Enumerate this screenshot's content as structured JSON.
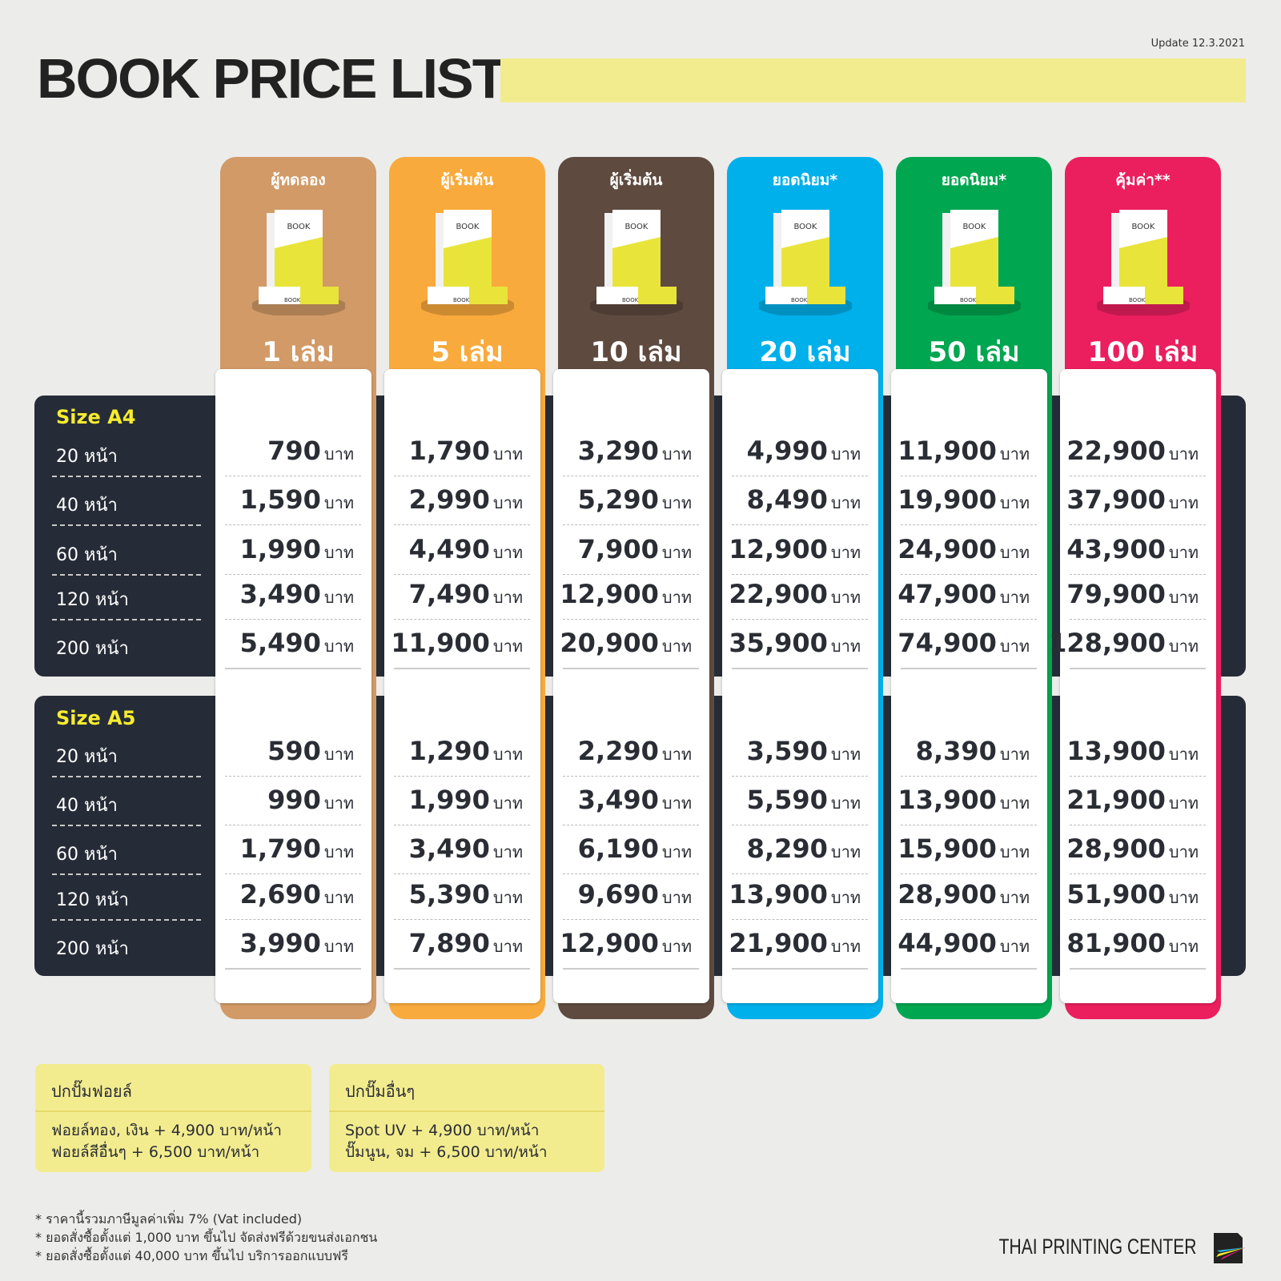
{
  "header": {
    "title": "BOOK PRICE LIST",
    "update": "Update 12.3.2021"
  },
  "colors": {
    "tiers": [
      "#d19a67",
      "#f9aa3c",
      "#5e4a3f",
      "#00b0ea",
      "#00a650",
      "#eb1f5e"
    ],
    "panel": "#262c37",
    "accent_yellow": "#f7ec2e",
    "note_bg": "#f3ec8f"
  },
  "unit": "บาท",
  "book_cover_text": "BOOK",
  "tiers": [
    {
      "name": "ผู้ทดลอง",
      "qty": "1 เล่ม"
    },
    {
      "name": "ผู้เริ่มต้น",
      "qty": "5 เล่ม"
    },
    {
      "name": "ผู้เริ่มต้น",
      "qty": "10 เล่ม"
    },
    {
      "name": "ยอดนิยม*",
      "qty": "20 เล่ม"
    },
    {
      "name": "ยอดนิยม*",
      "qty": "50 เล่ม"
    },
    {
      "name": "คุ้มค่า**",
      "qty": "100 เล่ม"
    }
  ],
  "sizes": [
    {
      "label": "Size A4",
      "rows": [
        "20 หน้า",
        "40 หน้า",
        "60 หน้า",
        "120 หน้า",
        "200 หน้า"
      ],
      "prices": [
        [
          "790",
          "1,790",
          "3,290",
          "4,990",
          "11,900",
          "22,900"
        ],
        [
          "1,590",
          "2,990",
          "5,290",
          "8,490",
          "19,900",
          "37,900"
        ],
        [
          "1,990",
          "4,490",
          "7,900",
          "12,900",
          "24,900",
          "43,900"
        ],
        [
          "3,490",
          "7,490",
          "12,900",
          "22,900",
          "47,900",
          "79,900"
        ],
        [
          "5,490",
          "11,900",
          "20,900",
          "35,900",
          "74,900",
          "128,900"
        ]
      ]
    },
    {
      "label": "Size A5",
      "rows": [
        "20 หน้า",
        "40 หน้า",
        "60 หน้า",
        "120 หน้า",
        "200 หน้า"
      ],
      "prices": [
        [
          "590",
          "1,290",
          "2,290",
          "3,590",
          "8,390",
          "13,900"
        ],
        [
          "990",
          "1,990",
          "3,490",
          "5,590",
          "13,900",
          "21,900"
        ],
        [
          "1,790",
          "3,490",
          "6,190",
          "8,290",
          "15,900",
          "28,900"
        ],
        [
          "2,690",
          "5,390",
          "9,690",
          "13,900",
          "28,900",
          "51,900"
        ],
        [
          "3,990",
          "7,890",
          "12,900",
          "21,900",
          "44,900",
          "81,900"
        ]
      ]
    }
  ],
  "addons": [
    {
      "title": "ปกปั๊มฟอยล์",
      "lines": [
        "ฟอยล์ทอง, เงิน + 4,900 บาท/หน้า",
        "ฟอยล์สีอื่นๆ + 6,500 บาท/หน้า"
      ]
    },
    {
      "title": "ปกปั๊มอื่นๆ",
      "lines": [
        "Spot UV + 4,900 บาท/หน้า",
        "ปั๊มนูน, จม + 6,500 บาท/หน้า"
      ]
    }
  ],
  "notes": [
    "* ราคานี้รวมภาษีมูลค่าเพิ่ม 7% (Vat included)",
    "* ยอดสั่งซื้อตั้งแต่ 1,000 บาท ขึ้นไป จัดส่งฟรีด้วยขนส่งเอกชน",
    "* ยอดสั่งซื้อตั้งแต่ 40,000 บาท ขึ้นไป บริการออกแบบฟรี"
  ],
  "brand": "THAI PRINTING CENTER"
}
